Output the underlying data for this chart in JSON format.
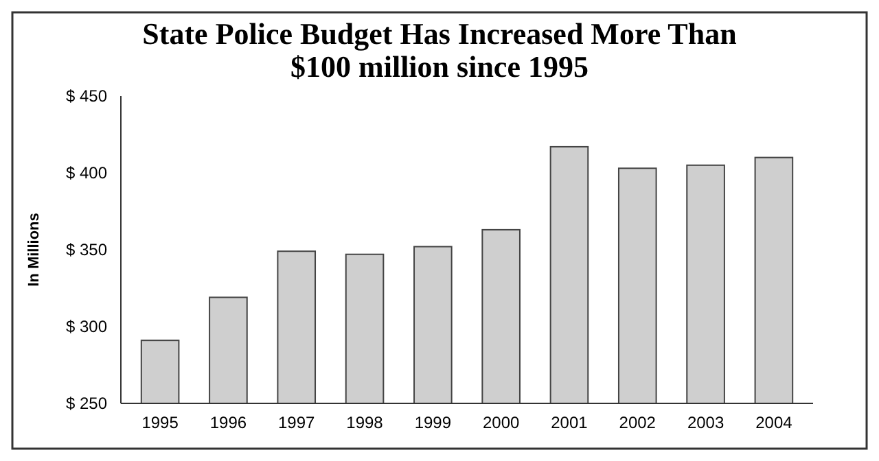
{
  "chart_data": {
    "type": "bar",
    "title": "State Police Budget Has Increased More Than $100 million since 1995",
    "ylabel": "In Millions",
    "categories": [
      "1995",
      "1996",
      "1997",
      "1998",
      "1999",
      "2000",
      "2001",
      "2002",
      "2003",
      "2004"
    ],
    "values": [
      291,
      319,
      349,
      347,
      352,
      363,
      417,
      403,
      405,
      410
    ],
    "color": "#cfcfcf",
    "ylim": [
      250,
      450
    ],
    "yticks": [
      {
        "value": 250,
        "label": "$ 250"
      },
      {
        "value": 300,
        "label": "$ 300"
      },
      {
        "value": 350,
        "label": "$ 350"
      },
      {
        "value": 400,
        "label": "$ 400"
      },
      {
        "value": 450,
        "label": "$ 450"
      }
    ],
    "grid": false
  }
}
